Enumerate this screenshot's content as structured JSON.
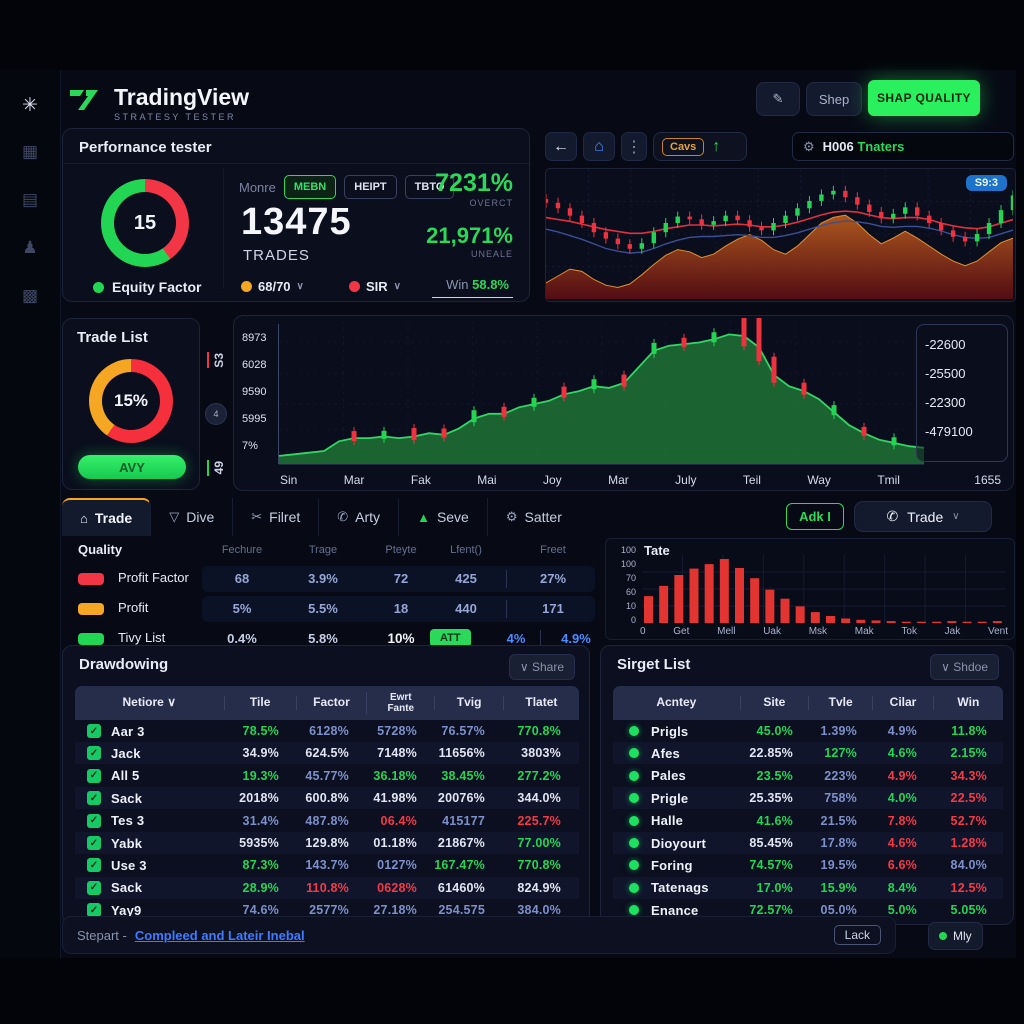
{
  "header": {
    "brand": "TradingView",
    "brand_sub": "STRATESY TESTER",
    "shep": "Shep",
    "shap_quality": "SHAP QUALITY"
  },
  "icons": {
    "edit": "✎",
    "back": "←",
    "home": "⌂",
    "kebab": "⋮",
    "up_arrow": "↑",
    "gear": "⚙",
    "chevron": "∨",
    "phone": "✆",
    "scissors": "✂",
    "shield": "▽",
    "warning": "▲",
    "check": "✓",
    "sidebar": [
      "✳",
      "▦",
      "▤",
      "♟",
      "▩"
    ]
  },
  "performance": {
    "title": "Perfornance tester",
    "donut_value": "15",
    "donut_red_deg": 145,
    "legend": "Equity Factor",
    "tab_plain": "Monre",
    "tabs": [
      "MEBN",
      "HEIPT",
      "TBTO"
    ],
    "active_tab": "MEBN",
    "trades_value": "13475",
    "trades_label": "TRADES",
    "stat1_value": "7231%",
    "stat1_label": "OVERCT",
    "stat2_value": "21,971%",
    "stat2_label": "UNEALE",
    "dropdown1": "68/70",
    "dropdown2": "SIR",
    "win_label": "Win",
    "win_value": "58.8%"
  },
  "mini": {
    "cavs": "Cavs",
    "search_white": "H006",
    "search_green": "Tnaters",
    "badge": "S9:3",
    "closes": [
      72,
      66,
      58,
      50,
      40,
      33,
      27,
      22,
      28,
      40,
      50,
      57,
      54,
      48,
      52,
      58,
      53,
      46,
      42,
      50,
      58,
      66,
      74,
      81,
      85,
      78,
      70,
      62,
      55,
      60,
      67,
      58,
      50,
      42,
      35,
      30,
      38,
      50,
      64,
      80
    ],
    "area": [
      14,
      20,
      26,
      24,
      17,
      12,
      10,
      13,
      21,
      30,
      38,
      43,
      41,
      36,
      39,
      46,
      52,
      56,
      51,
      43,
      39,
      46,
      56,
      66,
      71,
      73,
      66,
      56,
      48,
      53,
      59,
      53,
      46,
      39,
      33,
      29,
      33,
      41,
      49,
      53
    ],
    "red": [
      58,
      56,
      54,
      51,
      48,
      45,
      43,
      41,
      41,
      43,
      46,
      48,
      50,
      50,
      49,
      50,
      51,
      50,
      48,
      48,
      50,
      53,
      57,
      61,
      64,
      65,
      64,
      61,
      58,
      57,
      58,
      58,
      56,
      52,
      49,
      47,
      46,
      48,
      52,
      56
    ],
    "blue": [
      52,
      49,
      45,
      41,
      36,
      31,
      28,
      26,
      27,
      31,
      36,
      40,
      43,
      44,
      44,
      45,
      46,
      45,
      43,
      43,
      45,
      48,
      52,
      56,
      59,
      61,
      60,
      58,
      55,
      54,
      55,
      55,
      53,
      50,
      46,
      43,
      42,
      43,
      47,
      51
    ]
  },
  "trade_list": {
    "title": "Trade List",
    "donut_value": "15%",
    "donut_red_deg": 215,
    "button": "AVY",
    "side_top": "S3",
    "side_mid": "4",
    "side_bottom": "49"
  },
  "equity": {
    "ylabels": [
      "8973",
      "6028",
      "9590",
      "5995",
      "7%"
    ],
    "xlabels": [
      "Sin",
      "Mar",
      "Fak",
      "Mai",
      "Joy",
      "Mar",
      "July",
      "Teil",
      "Way",
      "Tmil"
    ],
    "xlast": "1655",
    "right_labels": [
      "22600",
      "25500",
      "22300",
      "479100"
    ],
    "area": [
      5,
      6,
      7,
      8,
      14,
      16,
      16,
      17,
      16,
      17,
      19,
      18,
      22,
      28,
      31,
      31,
      35,
      37,
      39,
      43,
      45,
      48,
      47,
      50,
      60,
      70,
      73,
      74,
      75,
      77,
      80,
      79,
      72,
      55,
      48,
      45,
      40,
      32,
      24,
      19,
      15,
      13,
      11,
      10
    ],
    "candles": [
      {
        "i": 5,
        "c": "r",
        "s": 10
      },
      {
        "i": 7,
        "c": "g",
        "s": 8
      },
      {
        "i": 9,
        "c": "r",
        "s": 12
      },
      {
        "i": 11,
        "c": "r",
        "s": 9
      },
      {
        "i": 13,
        "c": "g",
        "s": 12
      },
      {
        "i": 15,
        "c": "r",
        "s": 10
      },
      {
        "i": 17,
        "c": "g",
        "s": 9
      },
      {
        "i": 19,
        "c": "r",
        "s": 11
      },
      {
        "i": 21,
        "c": "g",
        "s": 10
      },
      {
        "i": 23,
        "c": "r",
        "s": 12
      },
      {
        "i": 25,
        "c": "g",
        "s": 11
      },
      {
        "i": 27,
        "c": "r",
        "s": 9
      },
      {
        "i": 29,
        "c": "g",
        "s": 10
      },
      {
        "i": 31,
        "c": "r",
        "s": 34
      },
      {
        "i": 32,
        "c": "r",
        "s": 46
      },
      {
        "i": 33,
        "c": "r",
        "s": 26
      },
      {
        "i": 35,
        "c": "r",
        "s": 12
      },
      {
        "i": 37,
        "c": "g",
        "s": 10
      },
      {
        "i": 39,
        "c": "r",
        "s": 9
      },
      {
        "i": 41,
        "c": "g",
        "s": 8
      }
    ]
  },
  "tabs": {
    "items": [
      {
        "label": "Trade",
        "icon": "home"
      },
      {
        "label": "Dive",
        "icon": "shield"
      },
      {
        "label": "Filret",
        "icon": "scissors"
      },
      {
        "label": "Arty",
        "icon": "phone"
      },
      {
        "label": "Seve",
        "icon": "warning"
      },
      {
        "label": "Satter",
        "icon": "gear"
      }
    ],
    "adk": "Adk I",
    "trade_button": "Trade"
  },
  "quality": {
    "title": "Quality",
    "headers": [
      "Fechure",
      "Trage",
      "Pteyte",
      "Lfent()",
      "Freet"
    ],
    "rows": [
      {
        "pill": "#f23645",
        "name": "Profit Factor",
        "strip": true,
        "cells": [
          [
            "68",
            "v"
          ],
          [
            "3.9%",
            "v"
          ],
          [
            "72",
            "v"
          ],
          [
            "425",
            "v"
          ],
          [
            "27%",
            "v"
          ]
        ]
      },
      {
        "pill": "#f5a623",
        "name": "Profit",
        "strip": true,
        "cells": [
          [
            "5%",
            "v"
          ],
          [
            "5.5%",
            "v"
          ],
          [
            "18",
            "v"
          ],
          [
            "440",
            "v"
          ],
          [
            "171",
            "v"
          ]
        ]
      },
      {
        "pill": "#22d653",
        "name": "Tivy List",
        "strip": false,
        "cells": [
          [
            "0.4%",
            "w"
          ],
          [
            "5.8%",
            "w"
          ],
          [
            "10%",
            "bold"
          ],
          [
            "ATT",
            "badge"
          ],
          [
            "4%",
            "blue"
          ],
          [
            "4.9%",
            "blue"
          ]
        ]
      }
    ]
  },
  "histogram": {
    "title": "Tate",
    "ylabels": [
      "100",
      "100",
      "70",
      "60",
      "10",
      "0"
    ],
    "xlabels": [
      "0",
      "Get",
      "Mell",
      "Uak",
      "Msk",
      "Mak",
      "Tok",
      "Jak",
      "Vent"
    ],
    "values": [
      42,
      58,
      75,
      85,
      92,
      100,
      86,
      70,
      52,
      38,
      26,
      17,
      11,
      7,
      5,
      4,
      3,
      2,
      2,
      2,
      3,
      2,
      2,
      3
    ]
  },
  "drawdown": {
    "title": "Drawdowing",
    "share": "∨ Share",
    "headers": [
      "Netiore ∨",
      "Tile",
      "Factor",
      "Ewrt\nFante",
      "Tvig",
      "Tlatet"
    ],
    "rows": [
      {
        "name": "Aar 3",
        "vals": [
          [
            "78.5%",
            "g"
          ],
          [
            "6128%",
            "b"
          ],
          [
            "5728%",
            "b"
          ],
          [
            "76.57%",
            "b"
          ],
          [
            "770.8%",
            "g"
          ]
        ]
      },
      {
        "name": "Jack",
        "vals": [
          [
            "34.9%",
            "w"
          ],
          [
            "624.5%",
            "w"
          ],
          [
            "7148%",
            "w"
          ],
          [
            "11656%",
            "w"
          ],
          [
            "3803%",
            "w"
          ]
        ]
      },
      {
        "name": "All 5",
        "vals": [
          [
            "19.3%",
            "g"
          ],
          [
            "45.77%",
            "b"
          ],
          [
            "36.18%",
            "g"
          ],
          [
            "38.45%",
            "g"
          ],
          [
            "277.2%",
            "g"
          ]
        ]
      },
      {
        "name": "Sack",
        "vals": [
          [
            "2018%",
            "w"
          ],
          [
            "600.8%",
            "w"
          ],
          [
            "41.98%",
            "w"
          ],
          [
            "20076%",
            "w"
          ],
          [
            "344.0%",
            "w"
          ]
        ]
      },
      {
        "name": "Tes 3",
        "vals": [
          [
            "31.4%",
            "b"
          ],
          [
            "487.8%",
            "b"
          ],
          [
            "06.4%",
            "r"
          ],
          [
            "415177",
            "b"
          ],
          [
            "225.7%",
            "r"
          ]
        ]
      },
      {
        "name": "Yabk",
        "vals": [
          [
            "5935%",
            "w"
          ],
          [
            "129.8%",
            "w"
          ],
          [
            "01.18%",
            "w"
          ],
          [
            "21867%",
            "w"
          ],
          [
            "77.00%",
            "g"
          ]
        ]
      },
      {
        "name": "Use 3",
        "vals": [
          [
            "87.3%",
            "g"
          ],
          [
            "143.7%",
            "b"
          ],
          [
            "0127%",
            "b"
          ],
          [
            "167.47%",
            "g"
          ],
          [
            "770.8%",
            "g"
          ]
        ]
      },
      {
        "name": "Sack",
        "vals": [
          [
            "28.9%",
            "g"
          ],
          [
            "110.8%",
            "r"
          ],
          [
            "0628%",
            "r"
          ],
          [
            "61460%",
            "w"
          ],
          [
            "824.9%",
            "w"
          ]
        ]
      },
      {
        "name": "Yay9",
        "vals": [
          [
            "74.6%",
            "b"
          ],
          [
            "2577%",
            "b"
          ],
          [
            "27.18%",
            "b"
          ],
          [
            "254.575",
            "b"
          ],
          [
            "384.0%",
            "b"
          ]
        ]
      }
    ]
  },
  "sirget": {
    "title": "Sirget List",
    "share": "∨ Shdoe",
    "headers": [
      "Acntey",
      "Site",
      "Tvle",
      "Cilar",
      "Win"
    ],
    "rows": [
      {
        "name": "Prigls",
        "vals": [
          [
            "45.0%",
            "g"
          ],
          [
            "1.39%",
            "b"
          ],
          [
            "4.9%",
            "b"
          ],
          [
            "11.8%",
            "g"
          ]
        ]
      },
      {
        "name": "Afes",
        "vals": [
          [
            "22.85%",
            "w"
          ],
          [
            "127%",
            "g"
          ],
          [
            "4.6%",
            "g"
          ],
          [
            "2.15%",
            "g"
          ]
        ]
      },
      {
        "name": "Pales",
        "vals": [
          [
            "23.5%",
            "g"
          ],
          [
            "223%",
            "b"
          ],
          [
            "4.9%",
            "r"
          ],
          [
            "34.3%",
            "r"
          ]
        ]
      },
      {
        "name": "Prigle",
        "vals": [
          [
            "25.35%",
            "w"
          ],
          [
            "758%",
            "b"
          ],
          [
            "4.0%",
            "g"
          ],
          [
            "22.5%",
            "r"
          ]
        ]
      },
      {
        "name": "Halle",
        "vals": [
          [
            "41.6%",
            "g"
          ],
          [
            "21.5%",
            "b"
          ],
          [
            "7.8%",
            "r"
          ],
          [
            "52.7%",
            "r"
          ]
        ]
      },
      {
        "name": "Dioyourt",
        "vals": [
          [
            "85.45%",
            "w"
          ],
          [
            "17.8%",
            "b"
          ],
          [
            "4.6%",
            "r"
          ],
          [
            "1.28%",
            "r"
          ]
        ]
      },
      {
        "name": "Foring",
        "vals": [
          [
            "74.57%",
            "g"
          ],
          [
            "19.5%",
            "b"
          ],
          [
            "6.6%",
            "r"
          ],
          [
            "84.0%",
            "b"
          ]
        ]
      },
      {
        "name": "Tatenags",
        "vals": [
          [
            "17.0%",
            "g"
          ],
          [
            "15.9%",
            "g"
          ],
          [
            "8.4%",
            "g"
          ],
          [
            "12.5%",
            "r"
          ]
        ]
      },
      {
        "name": "Enance",
        "vals": [
          [
            "72.57%",
            "g"
          ],
          [
            "05.0%",
            "b"
          ],
          [
            "5.0%",
            "g"
          ],
          [
            "5.05%",
            "g"
          ]
        ]
      }
    ]
  },
  "status": {
    "prefix": "Stepart -",
    "link": "Compleed and Lateir Inebal",
    "lock": "Lack",
    "badge": "Mly"
  }
}
